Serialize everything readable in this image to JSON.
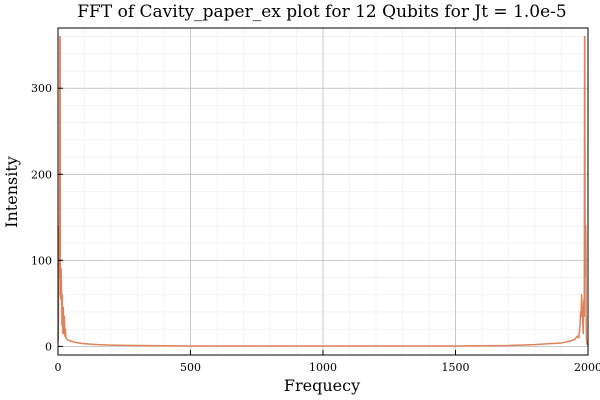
{
  "chart_data": {
    "type": "line",
    "title": "FFT of Cavity_paper_ex plot for 12 Qubits for Jt = 1.0e-5",
    "xlabel": "Frequecy",
    "ylabel": "Intensity",
    "xlim": [
      0,
      2000
    ],
    "ylim": [
      -10,
      370
    ],
    "x_ticks": [
      0,
      500,
      1000,
      1500,
      2000
    ],
    "y_ticks": [
      0,
      100,
      200,
      300
    ],
    "grid": true,
    "minor_grid": true,
    "legend": "none",
    "series": [
      {
        "color": "#e0815c",
        "x": [
          0,
          1,
          2,
          3,
          4,
          5,
          6,
          7,
          8,
          9,
          10,
          11,
          12,
          13,
          14,
          15,
          16,
          17,
          18,
          20,
          22,
          24,
          26,
          28,
          30,
          35,
          40,
          50,
          60,
          80,
          100,
          150,
          200,
          300,
          500,
          750,
          1000,
          1250,
          1500,
          1700,
          1800,
          1850,
          1900,
          1930,
          1950,
          1960,
          1965,
          1970,
          1972,
          1974,
          1976,
          1978,
          1980,
          1982,
          1984,
          1985,
          1986,
          1987,
          1988,
          1989,
          1990,
          1991,
          1992,
          1993,
          1994,
          1995,
          1996,
          1997,
          1998,
          1999,
          2000
        ],
        "y": [
          5,
          10,
          40,
          130,
          140,
          95,
          80,
          360,
          360,
          60,
          58,
          55,
          90,
          70,
          50,
          25,
          60,
          35,
          15,
          45,
          15,
          35,
          12,
          20,
          10,
          8,
          7,
          6,
          5,
          4,
          3,
          2,
          1.5,
          1,
          0.5,
          0.5,
          0.5,
          0.5,
          0.5,
          1,
          2,
          3,
          4,
          6,
          8,
          12,
          10,
          25,
          40,
          35,
          60,
          45,
          30,
          15,
          50,
          55,
          35,
          360,
          360,
          80,
          95,
          140,
          130,
          40,
          10,
          5,
          3,
          2,
          2,
          2,
          2
        ]
      }
    ]
  }
}
